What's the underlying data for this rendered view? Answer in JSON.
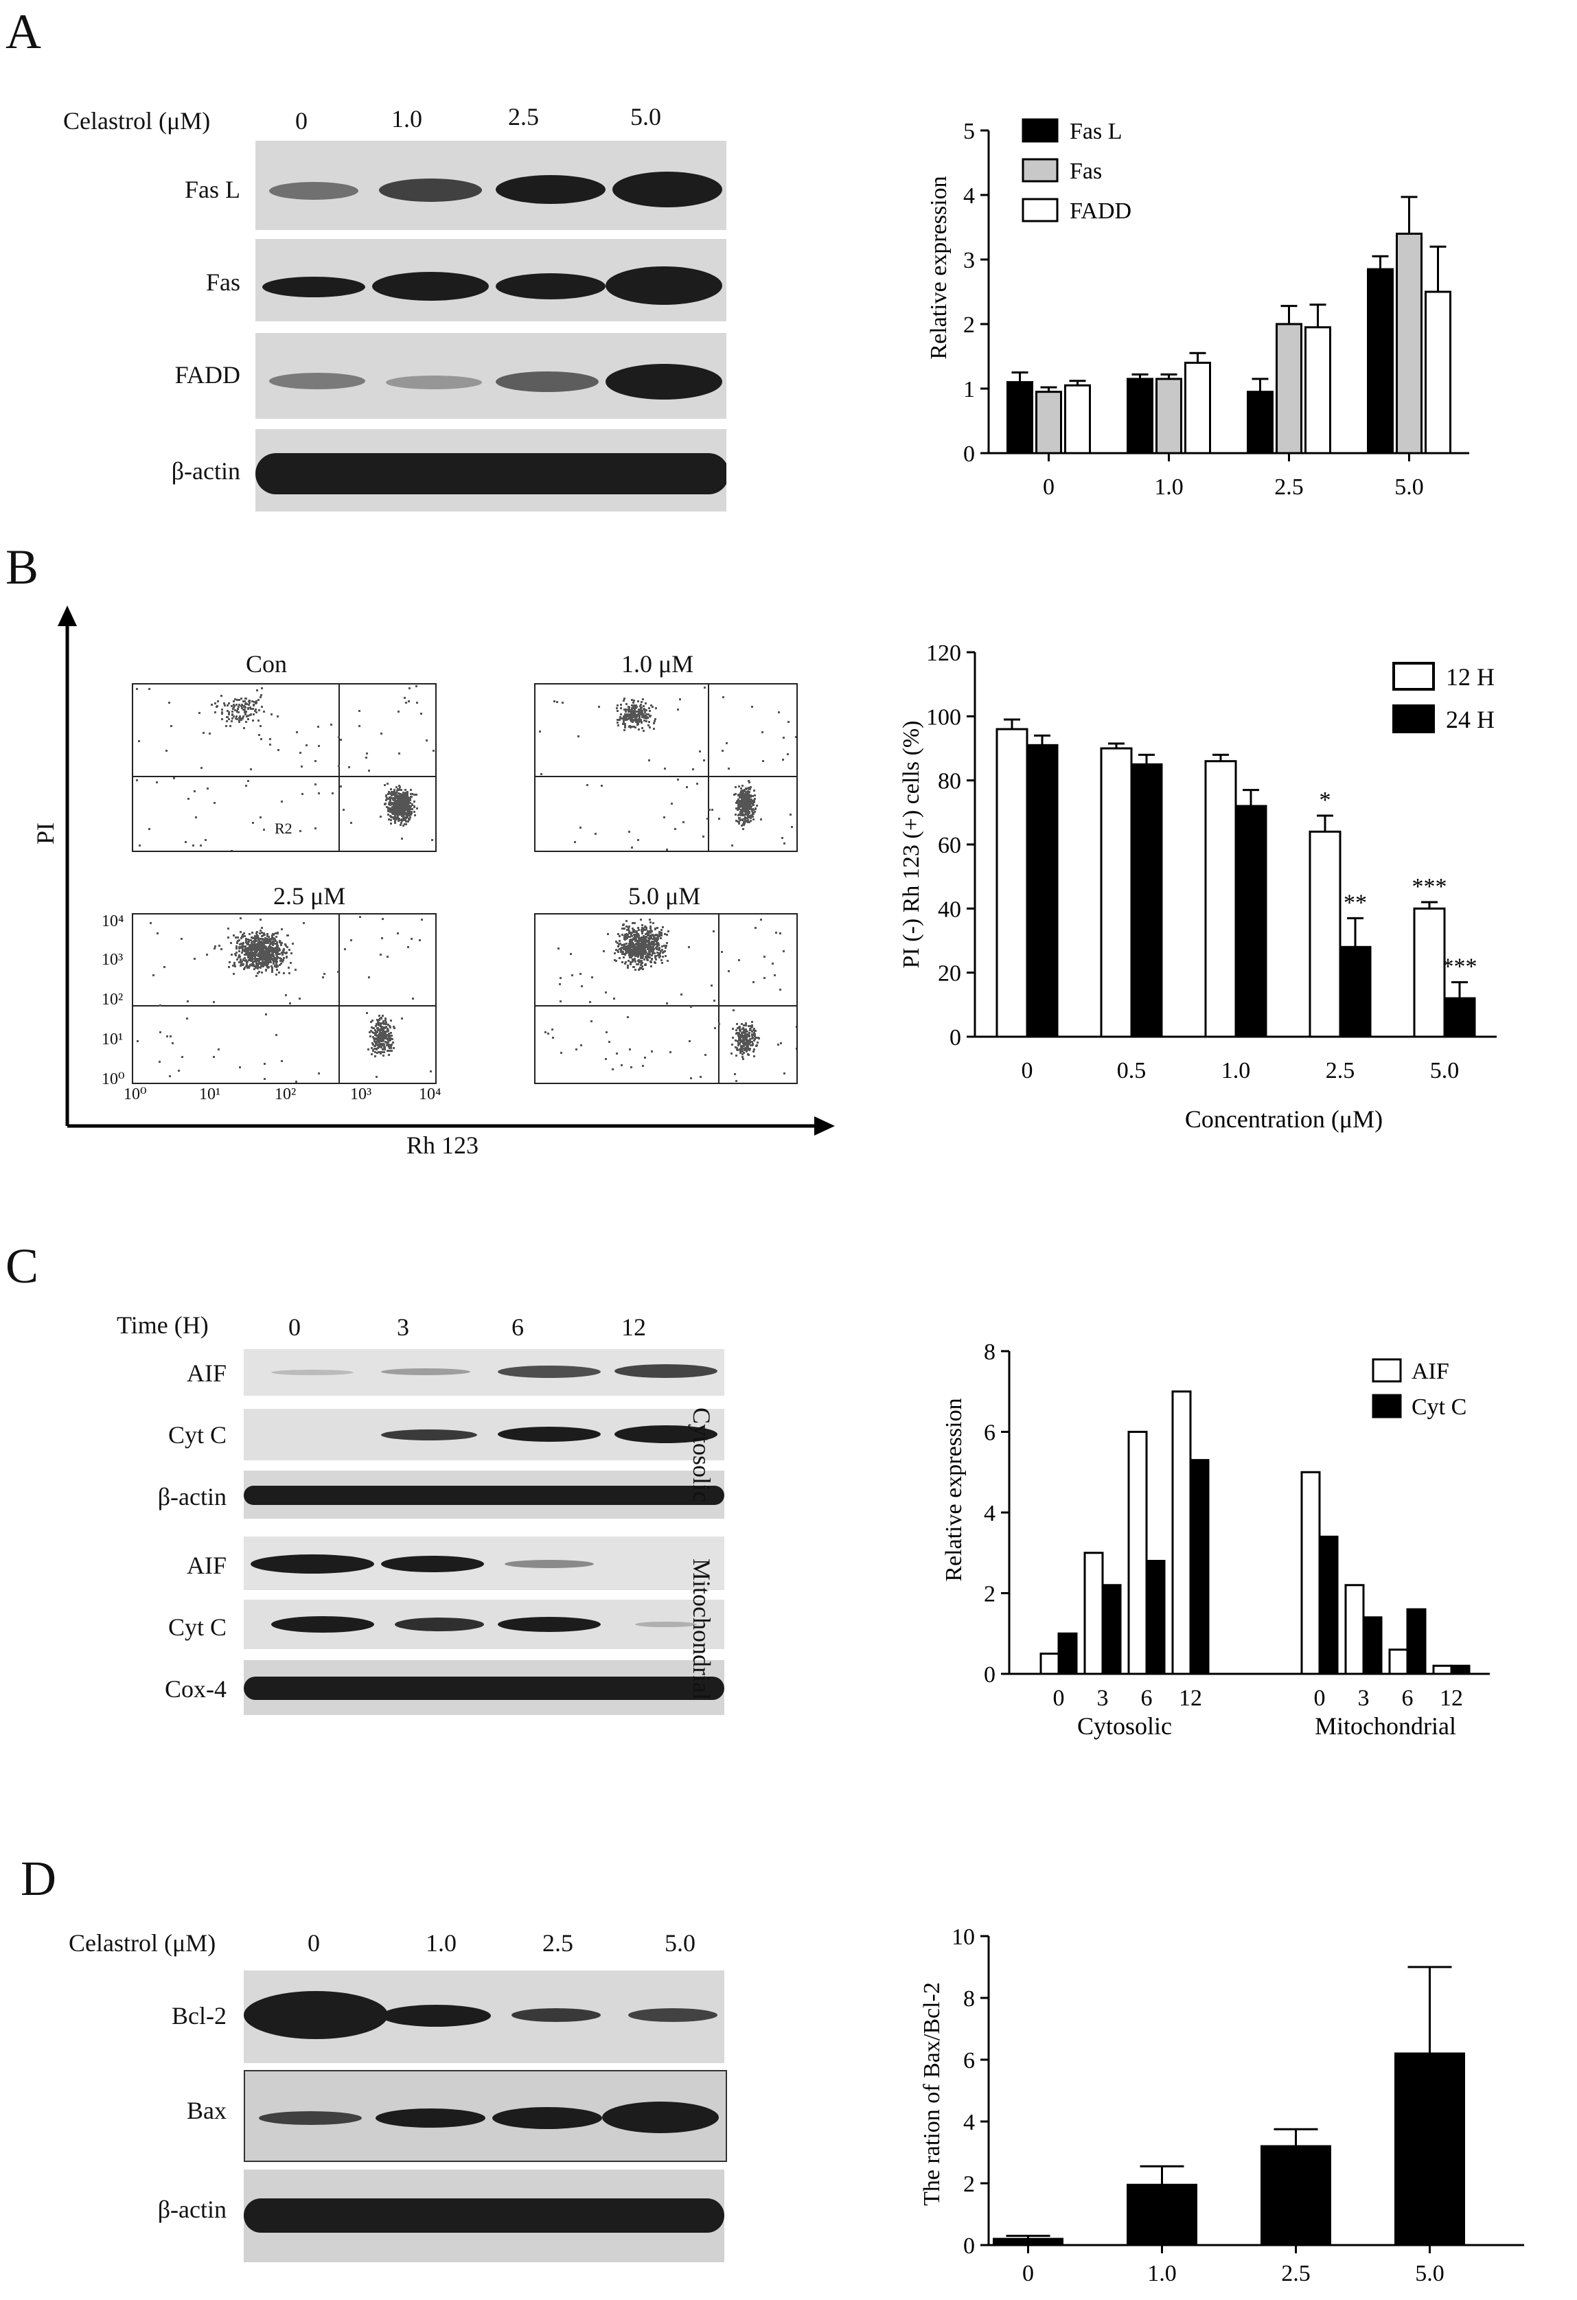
{
  "panels": {
    "A": {
      "letter": "A",
      "conc_label": "Celastrol (μM)",
      "concs": [
        "0",
        "1.0",
        "2.5",
        "5.0"
      ],
      "blot_rows": [
        "Fas L",
        "Fas",
        "FADD",
        "β-actin"
      ]
    },
    "B": {
      "letter": "B",
      "y_axis_label": "PI",
      "x_axis_label": "Rh 123",
      "plots": [
        {
          "title": "Con"
        },
        {
          "title": "1.0 μM"
        },
        {
          "title": "2.5 μM"
        },
        {
          "title": "5.0 μM"
        }
      ],
      "tick_labels": [
        "10⁰",
        "10¹",
        "10²",
        "10³",
        "10⁴"
      ],
      "gate_label": "R2"
    },
    "C": {
      "letter": "C",
      "time_label": "Time (H)",
      "times": [
        "0",
        "3",
        "6",
        "12"
      ],
      "blot_rows": [
        "AIF",
        "Cyt C",
        "β-actin",
        "AIF",
        "Cyt C",
        "Cox-4"
      ],
      "fraction_labels": [
        "Cytosolic",
        "Mitochondrial"
      ]
    },
    "D": {
      "letter": "D",
      "conc_label": "Celastrol (μM)",
      "concs": [
        "0",
        "1.0",
        "2.5",
        "5.0"
      ],
      "blot_rows": [
        "Bcl-2",
        "Bax",
        "β-actin"
      ]
    }
  },
  "chart_data": [
    {
      "id": "A",
      "type": "bar",
      "categories": [
        "0",
        "1.0",
        "2.5",
        "5.0"
      ],
      "series": [
        {
          "name": "Fas L",
          "values": [
            1.1,
            1.15,
            0.95,
            2.85
          ],
          "errors": [
            0.15,
            0.07,
            0.2,
            0.2
          ],
          "fill": "#000000"
        },
        {
          "name": "Fas",
          "values": [
            0.95,
            1.15,
            2.0,
            3.4
          ],
          "errors": [
            0.07,
            0.07,
            0.28,
            0.57
          ],
          "fill": "#c8c8c8"
        },
        {
          "name": "FADD",
          "values": [
            1.05,
            1.4,
            1.95,
            2.5
          ],
          "errors": [
            0.07,
            0.15,
            0.35,
            0.7
          ],
          "fill": "#ffffff"
        }
      ],
      "ylabel": "Relative expression",
      "xlabel": "",
      "ylim": [
        0,
        5
      ],
      "yticks": [
        0,
        1,
        2,
        3,
        4,
        5
      ],
      "legend": "top-left"
    },
    {
      "id": "B",
      "type": "bar",
      "categories": [
        "0",
        "0.5",
        "1.0",
        "2.5",
        "5.0"
      ],
      "series": [
        {
          "name": "12 H",
          "values": [
            96,
            90,
            86,
            64,
            40
          ],
          "errors": [
            3,
            1.5,
            2,
            5,
            2
          ],
          "fill": "#ffffff",
          "marks": [
            "",
            "",
            "",
            "*",
            "***"
          ]
        },
        {
          "name": "24 H",
          "values": [
            91,
            85,
            72,
            28,
            12
          ],
          "errors": [
            3,
            3,
            5,
            9,
            5
          ],
          "fill": "#000000",
          "marks": [
            "",
            "",
            "",
            "**",
            "***"
          ]
        }
      ],
      "ylabel": "PI (-) Rh 123 (+) cells (%)",
      "xlabel": "Concentration (μM)",
      "ylim": [
        0,
        120
      ],
      "yticks": [
        0,
        20,
        40,
        60,
        80,
        100,
        120
      ],
      "legend": "top-right"
    },
    {
      "id": "C",
      "type": "bar",
      "groups": [
        {
          "name": "Cytosolic",
          "categories": [
            "0",
            "3",
            "6",
            "12"
          ]
        },
        {
          "name": "Mitochondrial",
          "categories": [
            "0",
            "3",
            "6",
            "12"
          ]
        }
      ],
      "series": [
        {
          "name": "AIF",
          "values": [
            0.5,
            3.0,
            6.0,
            7.0,
            5.0,
            2.2,
            0.6,
            0.2
          ],
          "fill": "#ffffff"
        },
        {
          "name": "Cyt C",
          "values": [
            1.0,
            2.2,
            2.8,
            5.3,
            3.4,
            1.4,
            1.6,
            0.2
          ],
          "fill": "#000000"
        }
      ],
      "ylabel": "Relative expression",
      "xlabel": "",
      "ylim": [
        0,
        8
      ],
      "yticks": [
        0,
        2,
        4,
        6,
        8
      ],
      "legend": "top-right"
    },
    {
      "id": "D",
      "type": "bar",
      "categories": [
        "0",
        "1.0",
        "2.5",
        "5.0"
      ],
      "series": [
        {
          "name": "",
          "values": [
            0.2,
            1.95,
            3.2,
            6.2
          ],
          "errors": [
            0.1,
            0.6,
            0.55,
            2.8
          ],
          "fill": "#000000"
        }
      ],
      "ylabel": "The ration of Bax/Bcl-2",
      "xlabel": "",
      "ylim": [
        0,
        10
      ],
      "yticks": [
        0,
        2,
        4,
        6,
        8,
        10
      ],
      "legend": "none"
    }
  ]
}
